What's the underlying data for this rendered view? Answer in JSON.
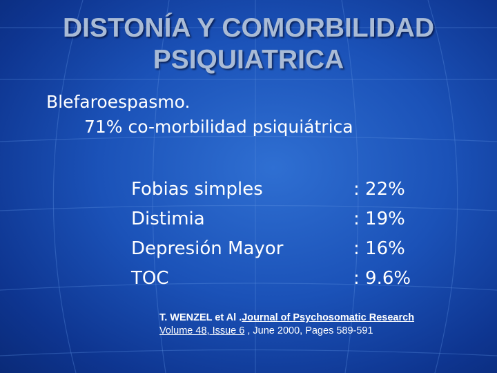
{
  "slide": {
    "title_lines": [
      "DISTONÍA Y COMORBILIDAD",
      "PSIQUIATRICA"
    ],
    "subtitle": {
      "line1": "Blefaroespasmo.",
      "line2": "71% co-morbilidad psiquiátrica"
    },
    "items": [
      {
        "label": "Fobias simples",
        "value": ": 22%"
      },
      {
        "label": "Distimia",
        "value": ": 19%"
      },
      {
        "label": "Depresión Mayor",
        "value": ": 16%"
      },
      {
        "label": "TOC",
        "value": ": 9.6%"
      }
    ],
    "reference": {
      "authors": "T. WENZEL et Al .",
      "journal": "Journal of Psychosomatic Research",
      "volume": "Volume 48, Issue 6",
      "rest": " , June 2000, Pages 589-591"
    },
    "colors": {
      "background": "#1b52b8",
      "title": "#a9bbd6",
      "text": "#ffffff"
    }
  }
}
